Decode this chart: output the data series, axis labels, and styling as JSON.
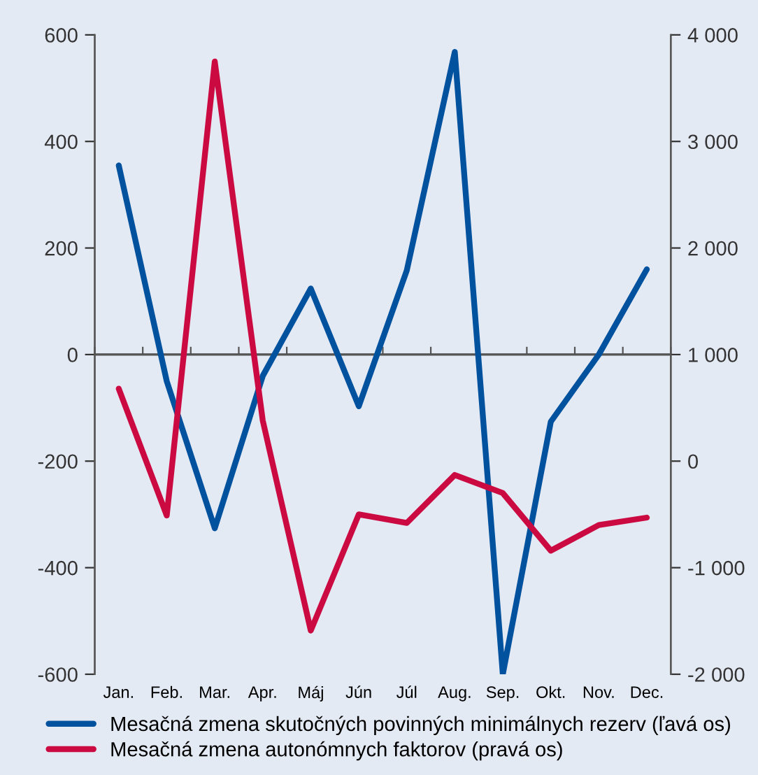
{
  "chart_data": {
    "type": "line",
    "categories": [
      "Jan.",
      "Feb.",
      "Mar.",
      "Apr.",
      "Máj",
      "Jún",
      "Júl",
      "Aug.",
      "Sep.",
      "Okt.",
      "Nov.",
      "Dec."
    ],
    "series": [
      {
        "name": "Mesačná zmena skutočných povinných minimálnych rezerv (ľavá os)",
        "color": "#00519e",
        "values": [
          355,
          -50,
          -326,
          -40,
          124,
          -97,
          158,
          568,
          -600,
          -126,
          0,
          160
        ]
      },
      {
        "name": "Mesačná zmena autonómnych faktorov (pravá os)",
        "color": "#cc0a42",
        "axis": "y2",
        "values": [
          680,
          -510,
          3750,
          380,
          -1590,
          -500,
          -580,
          -130,
          -300,
          -840,
          -600,
          -530
        ]
      }
    ],
    "ylim": [
      -600,
      600
    ],
    "yticks": [
      -600,
      -400,
      -200,
      0,
      200,
      400,
      600
    ],
    "y2lim": [
      -2000,
      4000
    ],
    "y2ticks": [
      {
        "value": -2000,
        "label": "-2 000"
      },
      {
        "value": -1000,
        "label": "-1 000"
      },
      0,
      {
        "value": 1000,
        "label": "1 000"
      },
      {
        "value": 2000,
        "label": "2 000"
      },
      {
        "value": 3000,
        "label": "3 000"
      },
      {
        "value": 4000,
        "label": "4 000"
      }
    ],
    "ref_lines": [
      {
        "axis": "y",
        "value": 0,
        "color": "#555555"
      }
    ],
    "grid": false,
    "legend": "bottom",
    "marker": "none",
    "line_style": "solid"
  }
}
